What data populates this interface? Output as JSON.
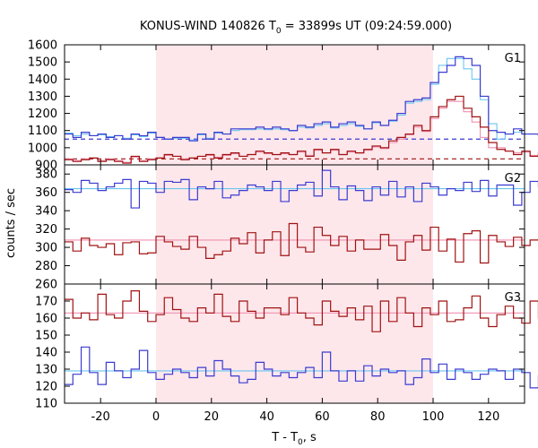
{
  "chart_data": {
    "type": "line",
    "title_main": "KONUS-WIND 140826 T",
    "title_sub": "0",
    "title_rest": " = 33899s UT (09:24:59.000)",
    "ylabel": "counts / sec",
    "xlabel_main": "T - T",
    "xlabel_sub": "0",
    "xlabel_rest": ", s",
    "xlim": [
      -33,
      133
    ],
    "xticks": [
      -20,
      0,
      20,
      40,
      60,
      80,
      100,
      120
    ],
    "highlight": [
      0,
      100
    ],
    "colors": {
      "blue": "#3b3bd1",
      "red": "#a01212",
      "cyan_fit": "#69c6ef",
      "pink_fit": "#f08fb1",
      "highlight": "#fde7eb"
    },
    "panels": [
      {
        "label": "G1",
        "ylim": [
          900,
          1600
        ],
        "yticks": [
          900,
          1000,
          1100,
          1200,
          1300,
          1400,
          1500,
          1600
        ],
        "step": 3,
        "background_levels": [
          {
            "name": "blue",
            "value": 1050
          },
          {
            "name": "red",
            "value": 935
          }
        ],
        "series": [
          {
            "name": "blue",
            "x0": -33,
            "values": [
              1080,
              1060,
              1090,
              1070,
              1080,
              1060,
              1070,
              1050,
              1080,
              1070,
              1090,
              1060,
              1050,
              1060,
              1060,
              1040,
              1080,
              1050,
              1090,
              1080,
              1110,
              1110,
              1110,
              1120,
              1110,
              1120,
              1110,
              1100,
              1130,
              1120,
              1140,
              1150,
              1120,
              1140,
              1150,
              1130,
              1110,
              1150,
              1130,
              1160,
              1200,
              1270,
              1280,
              1290,
              1380,
              1440,
              1480,
              1530,
              1520,
              1480,
              1300,
              1100,
              1090,
              1080,
              1110,
              1080,
              1080,
              1070,
              1060,
              1050,
              1060,
              1060,
              1050,
              1080,
              1060,
              1050
            ],
            "fit": [
              1085,
              1070,
              1080,
              1070,
              1075,
              1065,
              1070,
              1055,
              1075,
              1065,
              1085,
              1060,
              1050,
              1055,
              1055,
              1045,
              1075,
              1055,
              1085,
              1080,
              1100,
              1105,
              1105,
              1110,
              1105,
              1110,
              1105,
              1100,
              1120,
              1115,
              1130,
              1140,
              1115,
              1130,
              1140,
              1125,
              1110,
              1145,
              1130,
              1155,
              1190,
              1260,
              1270,
              1280,
              1370,
              1480,
              1520,
              1520,
              1460,
              1400,
              1280,
              1140,
              1050,
              1080,
              1090,
              1080,
              1080,
              1070,
              1060,
              1050,
              1060,
              1055,
              1050,
              1070,
              1060,
              1050
            ]
          },
          {
            "name": "red",
            "x0": -33,
            "values": [
              930,
              920,
              930,
              940,
              920,
              930,
              920,
              910,
              950,
              920,
              930,
              940,
              960,
              950,
              930,
              940,
              950,
              960,
              940,
              960,
              970,
              950,
              960,
              980,
              970,
              960,
              970,
              960,
              980,
              950,
              990,
              970,
              990,
              960,
              980,
              970,
              990,
              1010,
              1000,
              1040,
              1060,
              1080,
              1130,
              1100,
              1180,
              1240,
              1280,
              1300,
              1230,
              1180,
              1120,
              1030,
              990,
              980,
              960,
              980,
              950,
              970,
              940,
              960,
              950,
              940,
              930,
              920,
              930,
              920
            ],
            "fit": [
              935,
              925,
              935,
              940,
              925,
              935,
              925,
              915,
              945,
              925,
              935,
              940,
              955,
              950,
              935,
              940,
              950,
              955,
              945,
              955,
              965,
              950,
              960,
              975,
              965,
              960,
              965,
              960,
              975,
              955,
              985,
              970,
              985,
              960,
              975,
              970,
              985,
              1005,
              995,
              1030,
              1050,
              1075,
              1120,
              1095,
              1170,
              1230,
              1270,
              1270,
              1210,
              1150,
              1060,
              1000,
              1000,
              980,
              970,
              975,
              955,
              965,
              945,
              960,
              955,
              945,
              935,
              925,
              930,
              920
            ]
          }
        ]
      },
      {
        "label": "G2",
        "ylim": [
          260,
          390
        ],
        "yticks": [
          260,
          280,
          300,
          320,
          340,
          360,
          380
        ],
        "step": 3,
        "background_levels": [
          {
            "name": "blue",
            "value": 364
          },
          {
            "name": "red",
            "value": 308
          }
        ],
        "series": [
          {
            "name": "blue",
            "x0": -33,
            "values": [
              363,
              360,
              373,
              370,
              362,
              366,
              370,
              374,
              343,
              372,
              370,
              360,
              372,
              371,
              374,
              352,
              366,
              364,
              372,
              354,
              357,
              362,
              368,
              366,
              362,
              372,
              350,
              362,
              368,
              371,
              356,
              384,
              366,
              352,
              367,
              362,
              351,
              366,
              357,
              372,
              355,
              366,
              350,
              370,
              366,
              357,
              364,
              362,
              371,
              361,
              373,
              356,
              368,
              368,
              346,
              360,
              372,
              366,
              367,
              358,
              366,
              372,
              348,
              375,
              352,
              372
            ],
            "fit_value": 364
          },
          {
            "name": "red",
            "x0": -33,
            "values": [
              306,
              296,
              310,
              302,
              300,
              304,
              292,
              305,
              306,
              293,
              294,
              312,
              306,
              301,
              298,
              312,
              300,
              288,
              292,
              296,
              310,
              304,
              316,
              294,
              308,
              317,
              291,
              326,
              300,
              295,
              322,
              313,
              302,
              312,
              296,
              308,
              298,
              298,
              314,
              302,
              286,
              306,
              313,
              297,
              322,
              296,
              309,
              284,
              315,
              318,
              283,
              313,
              306,
              301,
              311,
              302,
              308,
              309,
              295,
              318,
              307,
              316,
              296,
              318,
              292,
              318
            ],
            "fit_value": 308
          }
        ]
      },
      {
        "label": "G3",
        "ylim": [
          110,
          180
        ],
        "yticks": [
          110,
          120,
          130,
          140,
          150,
          160,
          170,
          180
        ],
        "step": 3,
        "background_levels": [
          {
            "name": "red",
            "value": 163
          },
          {
            "name": "blue",
            "value": 129
          }
        ],
        "series": [
          {
            "name": "red",
            "x0": -33,
            "values": [
              171,
              160,
              163,
              159,
              174,
              162,
              160,
              170,
              176,
              164,
              158,
              162,
              172,
              165,
              160,
              158,
              166,
              163,
              174,
              161,
              158,
              170,
              164,
              160,
              166,
              166,
              162,
              172,
              163,
              160,
              156,
              170,
              164,
              161,
              166,
              159,
              167,
              152,
              170,
              158,
              172,
              163,
              155,
              166,
              162,
              170,
              158,
              159,
              166,
              173,
              160,
              155,
              162,
              167,
              160,
              157,
              170,
              160,
              156,
              165,
              164,
              167,
              172,
              160,
              157,
              162
            ],
            "fit_value": 163
          },
          {
            "name": "blue",
            "x0": -33,
            "values": [
              121,
              127,
              143,
              128,
              121,
              134,
              129,
              125,
              130,
              141,
              128,
              124,
              127,
              130,
              128,
              125,
              131,
              126,
              135,
              130,
              126,
              122,
              124,
              134,
              130,
              126,
              128,
              125,
              128,
              131,
              125,
              140,
              129,
              123,
              129,
              123,
              132,
              126,
              130,
              128,
              129,
              121,
              125,
              136,
              128,
              133,
              124,
              130,
              128,
              124,
              127,
              130,
              129,
              124,
              130,
              128,
              119,
              126,
              130,
              121,
              129,
              125,
              126,
              138,
              121,
              125
            ],
            "fit_value": 129
          }
        ]
      }
    ]
  }
}
